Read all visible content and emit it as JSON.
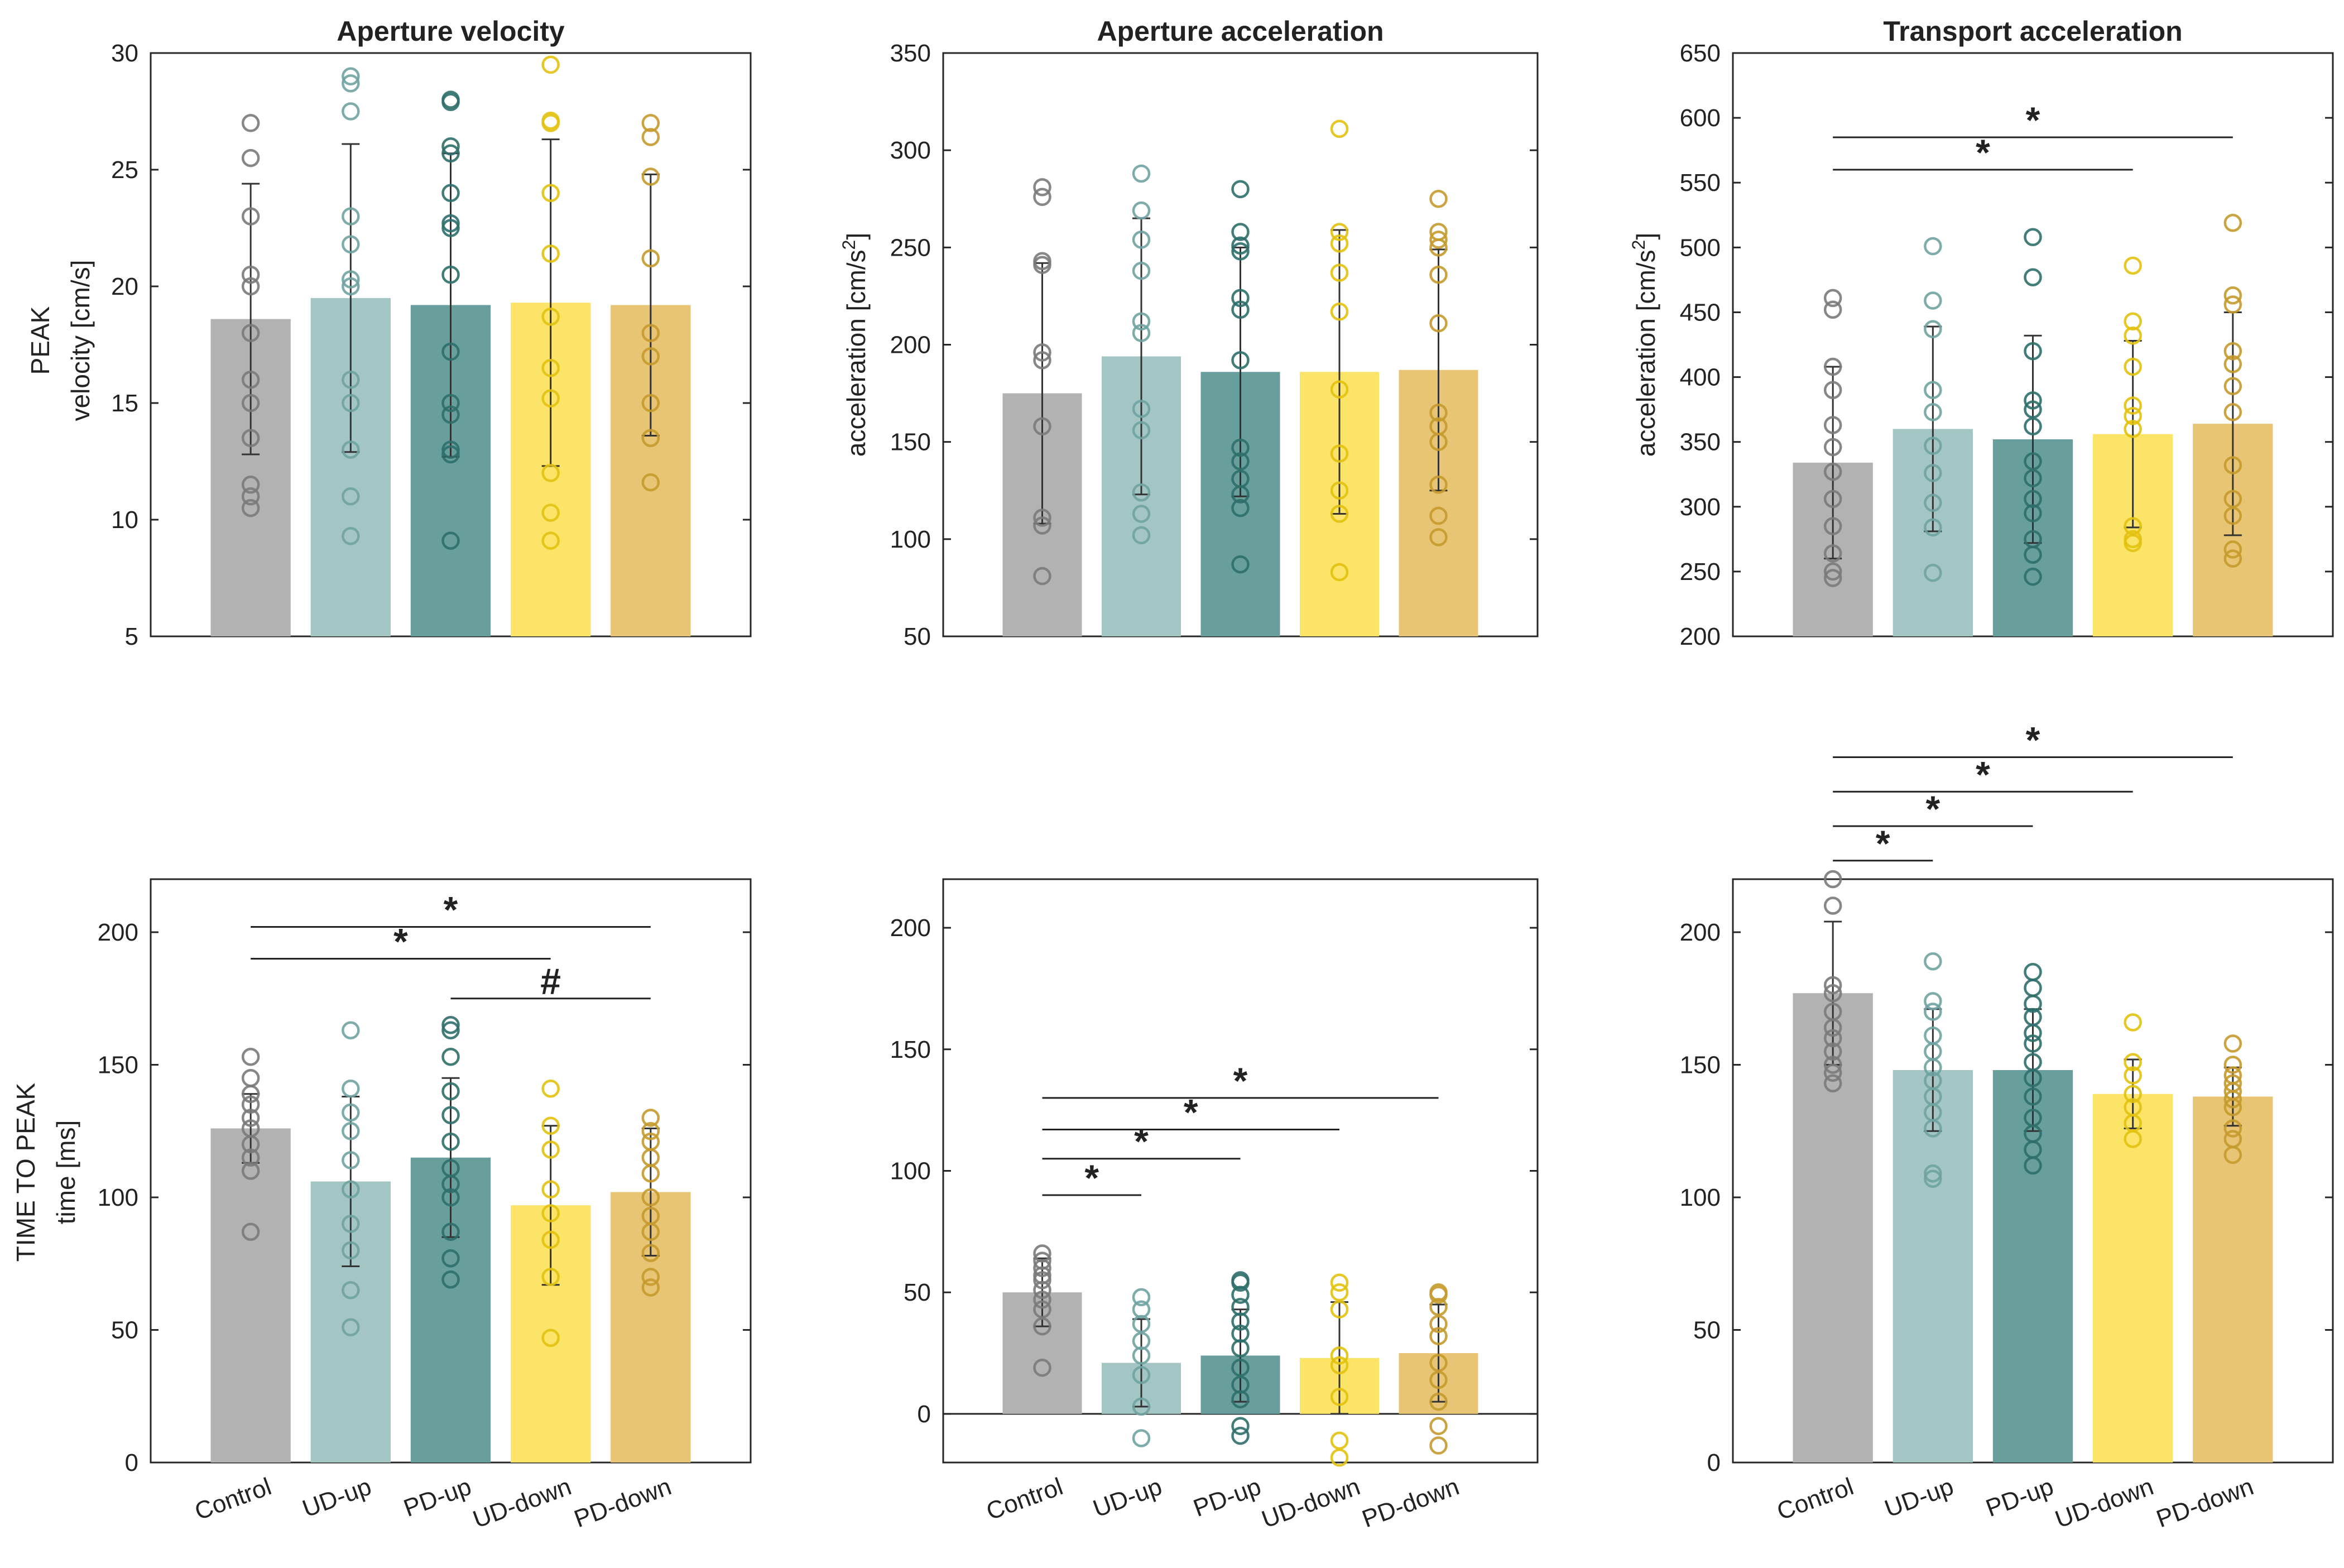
{
  "figure": {
    "categories": [
      "Control",
      "UD-up",
      "PD-up",
      "UD-down",
      "PD-down"
    ],
    "colors": [
      "#b2b2b2",
      "#a3c6c4",
      "#689f9d",
      "#fbe467",
      "#e7c575"
    ],
    "marker_colors": [
      "#7a7a7a",
      "#6fa3a1",
      "#2e6f6c",
      "#e2c10e",
      "#c59a2d"
    ],
    "row_labels": {
      "peak": [
        "PEAK",
        "velocity [cm/s]"
      ],
      "time": [
        "TIME TO PEAK",
        "time [ms]"
      ]
    }
  },
  "chart_data": [
    {
      "id": "peak-aperture-velocity",
      "type": "bar",
      "title": "Aperture velocity",
      "ylabel": "",
      "ylim": [
        5,
        30
      ],
      "yticks": [
        "5",
        "10",
        "15",
        "20",
        "25",
        "30"
      ],
      "categories": [
        "Control",
        "UD-up",
        "PD-up",
        "UD-down",
        "PD-down"
      ],
      "values": [
        18.6,
        19.5,
        19.2,
        19.3,
        19.2
      ],
      "sd": [
        5.8,
        6.6,
        6.5,
        7.0,
        5.6
      ],
      "points": [
        [
          27.0,
          25.5,
          23.0,
          20.5,
          20.0,
          18.0,
          16.0,
          15.0,
          13.5,
          11.5,
          11.0,
          10.5
        ],
        [
          29.0,
          28.7,
          27.5,
          23.0,
          21.8,
          20.3,
          20.0,
          16.0,
          15.0,
          13.0,
          11.0,
          9.3
        ],
        [
          28.0,
          27.9,
          26.0,
          25.7,
          24.0,
          22.7,
          22.5,
          20.5,
          17.2,
          15.0,
          14.5,
          13.0,
          12.8,
          9.1
        ],
        [
          29.5,
          27.1,
          27.0,
          24.0,
          21.4,
          18.7,
          16.5,
          15.2,
          12.0,
          10.3,
          9.1
        ],
        [
          27.0,
          26.4,
          24.7,
          21.2,
          18.0,
          17.0,
          15.0,
          13.5,
          11.6
        ]
      ],
      "brackets": []
    },
    {
      "id": "peak-aperture-acceleration",
      "type": "bar",
      "title": "Aperture acceleration",
      "ylabel": "acceleration [cm/s²]",
      "ylim": [
        50,
        350
      ],
      "yticks": [
        "50",
        "100",
        "150",
        "200",
        "250",
        "300",
        "350"
      ],
      "categories": [
        "Control",
        "UD-up",
        "PD-up",
        "UD-down",
        "PD-down"
      ],
      "values": [
        175,
        194,
        186,
        186,
        187
      ],
      "sd": [
        67,
        71,
        64,
        73,
        62
      ],
      "points": [
        [
          281,
          276,
          243,
          241,
          196,
          192,
          158,
          111,
          107,
          81
        ],
        [
          288,
          269,
          254,
          238,
          212,
          206,
          167,
          156,
          124,
          113,
          102
        ],
        [
          280,
          258,
          251,
          248,
          224,
          218,
          192,
          147,
          140,
          131,
          123,
          116,
          87
        ],
        [
          311,
          258,
          252,
          237,
          217,
          177,
          144,
          125,
          113,
          83
        ],
        [
          275,
          258,
          254,
          250,
          236,
          211,
          165,
          158,
          150,
          128,
          112,
          101
        ]
      ],
      "brackets": []
    },
    {
      "id": "peak-transport-acceleration",
      "type": "bar",
      "title": "Transport acceleration",
      "ylabel": "acceleration [cm/s²]",
      "ylim": [
        200,
        650
      ],
      "yticks": [
        "200",
        "250",
        "300",
        "350",
        "400",
        "450",
        "500",
        "550",
        "600",
        "650"
      ],
      "categories": [
        "Control",
        "UD-up",
        "PD-up",
        "UD-down",
        "PD-down"
      ],
      "values": [
        334,
        360,
        352,
        356,
        364
      ],
      "sd": [
        74,
        79,
        80,
        72,
        86
      ],
      "points": [
        [
          461,
          452,
          408,
          390,
          363,
          346,
          327,
          306,
          285,
          264,
          250,
          245
        ],
        [
          501,
          459,
          437,
          390,
          373,
          347,
          326,
          303,
          284,
          249
        ],
        [
          508,
          477,
          420,
          382,
          375,
          362,
          335,
          322,
          306,
          295,
          275,
          263,
          246
        ],
        [
          486,
          443,
          432,
          408,
          378,
          370,
          360,
          285,
          275,
          272
        ],
        [
          519,
          463,
          456,
          420,
          410,
          393,
          373,
          332,
          306,
          293,
          267,
          260
        ]
      ],
      "brackets": [
        {
          "from": 0,
          "to": 3,
          "label": "*",
          "y": 560
        },
        {
          "from": 0,
          "to": 4,
          "label": "*",
          "y": 585
        }
      ]
    },
    {
      "id": "time-aperture-velocity",
      "type": "bar",
      "title": "",
      "ylabel": "",
      "ylim": [
        0,
        220
      ],
      "yticks": [
        "0",
        "50",
        "100",
        "150",
        "200"
      ],
      "categories": [
        "Control",
        "UD-up",
        "PD-up",
        "UD-down",
        "PD-down"
      ],
      "values": [
        126,
        106,
        115,
        97,
        102
      ],
      "sd": [
        13,
        32,
        30,
        30,
        24
      ],
      "points": [
        [
          153,
          145,
          139,
          135,
          130,
          126,
          120,
          115,
          110,
          87
        ],
        [
          163,
          141,
          132,
          125,
          114,
          103,
          90,
          80,
          65,
          51
        ],
        [
          165,
          163,
          153,
          140,
          131,
          121,
          111,
          105,
          100,
          87,
          77,
          69
        ],
        [
          141,
          127,
          118,
          103,
          94,
          84,
          70,
          47
        ],
        [
          130,
          125,
          121,
          115,
          109,
          100,
          93,
          87,
          79,
          70,
          66
        ]
      ],
      "brackets": [
        {
          "from": 2,
          "to": 4,
          "label": "#",
          "y": 175
        },
        {
          "from": 0,
          "to": 3,
          "label": "*",
          "y": 190
        },
        {
          "from": 0,
          "to": 4,
          "label": "*",
          "y": 202
        }
      ]
    },
    {
      "id": "time-aperture-acceleration",
      "type": "bar",
      "title": "",
      "ylabel": "",
      "ylim": [
        -20,
        220
      ],
      "yticks": [
        "0",
        "50",
        "100",
        "150",
        "200"
      ],
      "categories": [
        "Control",
        "UD-up",
        "PD-up",
        "UD-down",
        "PD-down"
      ],
      "values": [
        50,
        21,
        24,
        23,
        25
      ],
      "sd": [
        14,
        18,
        19,
        23,
        20
      ],
      "points": [
        [
          66,
          63,
          60,
          57,
          55,
          51,
          47,
          43,
          36,
          19
        ],
        [
          48,
          43,
          37,
          30,
          24,
          16,
          3,
          -10
        ],
        [
          55,
          54,
          49,
          44,
          38,
          33,
          27,
          19,
          12,
          6,
          -5,
          -9
        ],
        [
          54,
          50,
          43,
          24,
          20,
          7,
          -11,
          -18
        ],
        [
          50,
          49,
          44,
          37,
          32,
          21,
          14,
          5,
          -5,
          -13
        ]
      ],
      "brackets": [
        {
          "from": 0,
          "to": 1,
          "label": "*",
          "y": 90
        },
        {
          "from": 0,
          "to": 2,
          "label": "*",
          "y": 105
        },
        {
          "from": 0,
          "to": 3,
          "label": "*",
          "y": 117
        },
        {
          "from": 0,
          "to": 4,
          "label": "*",
          "y": 130
        }
      ]
    },
    {
      "id": "time-transport-acceleration",
      "type": "bar",
      "title": "",
      "ylabel": "",
      "ylim": [
        0,
        220
      ],
      "yticks": [
        "0",
        "50",
        "100",
        "150",
        "200"
      ],
      "categories": [
        "Control",
        "UD-up",
        "PD-up",
        "UD-down",
        "PD-down"
      ],
      "values": [
        177,
        148,
        148,
        139,
        138
      ],
      "sd": [
        27,
        23,
        23,
        13,
        11
      ],
      "points": [
        [
          220,
          210,
          180,
          177,
          170,
          164,
          160,
          155,
          150,
          147,
          143
        ],
        [
          189,
          174,
          170,
          161,
          155,
          149,
          144,
          138,
          132,
          126,
          109,
          107
        ],
        [
          185,
          179,
          173,
          168,
          162,
          158,
          151,
          145,
          138,
          130,
          124,
          118,
          112
        ],
        [
          166,
          151,
          146,
          139,
          134,
          128,
          122
        ],
        [
          158,
          150,
          146,
          143,
          140,
          137,
          134,
          126,
          122,
          116
        ]
      ],
      "brackets": [
        {
          "from": 0,
          "to": 1,
          "label": "*",
          "y": 227
        },
        {
          "from": 0,
          "to": 2,
          "label": "*",
          "y": 240
        },
        {
          "from": 0,
          "to": 3,
          "label": "*",
          "y": 253
        },
        {
          "from": 0,
          "to": 4,
          "label": "*",
          "y": 266
        }
      ]
    }
  ]
}
